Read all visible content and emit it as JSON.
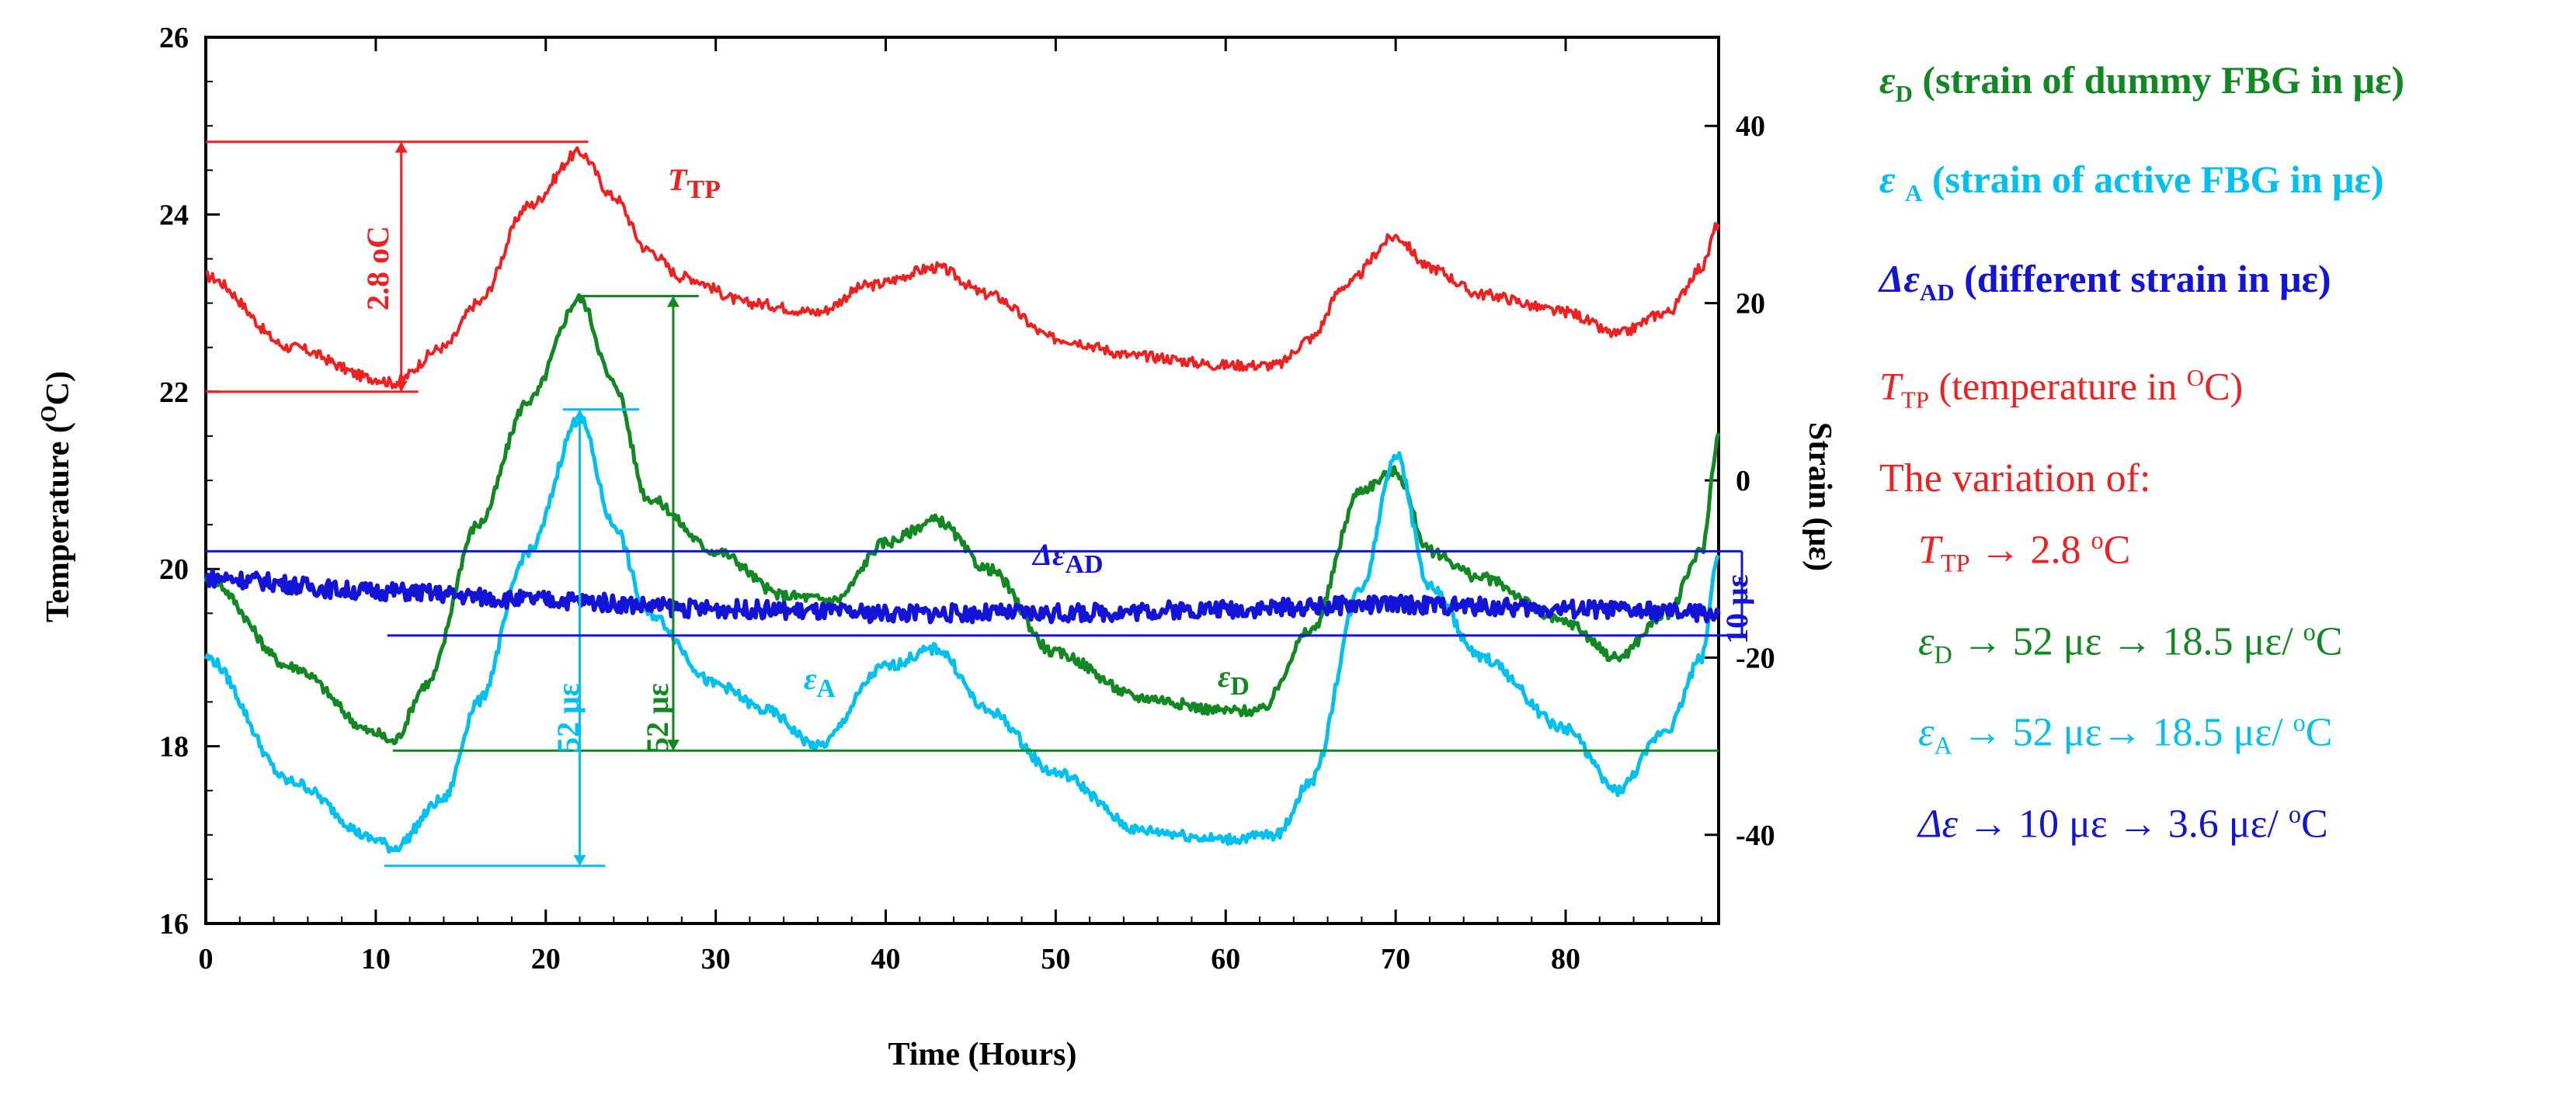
{
  "chart_data": {
    "type": "line",
    "xlabel": "Time (Hours)",
    "ylabel_left": "Temperature (oC)",
    "ylabel_right": "Strain (με)",
    "xlim": [
      0,
      89
    ],
    "ylim_left": [
      16,
      26
    ],
    "ylim_right": [
      -50,
      50
    ],
    "x_ticks": [
      0,
      10,
      20,
      30,
      40,
      50,
      60,
      70,
      80
    ],
    "y_left_ticks": [
      16,
      18,
      20,
      22,
      24,
      26
    ],
    "y_right_ticks": [
      -40,
      -20,
      0,
      20,
      40
    ],
    "series": [
      {
        "name": "T_TP (temperature in oC)",
        "axis": "left",
        "color": "#f02020",
        "label": "T",
        "label_sub": "TP",
        "x": [
          0,
          5,
          10,
          11,
          14,
          16,
          19,
          22,
          24,
          26,
          28,
          32,
          36,
          39,
          43,
          46,
          50,
          55,
          60,
          63,
          65,
          67,
          70,
          72,
          75,
          80,
          83,
          86,
          88,
          89
        ],
        "y": [
          23.3,
          22.5,
          22.15,
          22.1,
          22.5,
          23.0,
          24.1,
          24.7,
          24.2,
          23.6,
          23.3,
          23.0,
          22.9,
          23.2,
          23.4,
          23.1,
          22.6,
          22.4,
          22.3,
          22.3,
          22.6,
          23.2,
          23.75,
          23.4,
          23.1,
          22.9,
          22.65,
          22.9,
          23.4,
          23.9
        ]
      },
      {
        "name": "εD (strain of dummy FBG in με)",
        "axis": "left",
        "color": "#118822",
        "label": "ε",
        "label_sub": "D",
        "x": [
          0,
          5,
          10,
          11,
          13,
          16,
          19,
          22,
          24,
          26,
          30,
          34,
          37,
          40,
          43,
          46,
          50,
          55,
          60,
          62,
          65,
          68,
          70,
          72,
          75,
          80,
          83,
          86,
          88,
          89
        ],
        "y": [
          19.9,
          18.9,
          18.15,
          18.05,
          18.7,
          20.5,
          21.9,
          23.05,
          22.1,
          20.8,
          20.2,
          19.7,
          19.65,
          20.3,
          20.55,
          20.0,
          19.05,
          18.55,
          18.4,
          18.4,
          19.3,
          20.9,
          21.1,
          20.2,
          19.9,
          19.4,
          19.0,
          19.5,
          20.2,
          21.5
        ]
      },
      {
        "name": "εA (strain of active FBG in με)",
        "axis": "left",
        "color": "#00c0f0",
        "label": "ε",
        "label_sub": "A",
        "x": [
          0,
          5,
          10,
          11,
          14,
          16,
          19,
          22,
          24,
          26,
          30,
          33,
          36,
          40,
          43,
          46,
          50,
          55,
          60,
          63,
          65,
          68,
          70,
          72,
          75,
          80,
          83,
          86,
          88,
          89
        ],
        "y": [
          19.0,
          17.6,
          16.95,
          16.85,
          17.4,
          18.5,
          20.2,
          21.7,
          20.5,
          19.5,
          18.7,
          18.4,
          18.0,
          18.9,
          19.1,
          18.4,
          17.7,
          17.05,
          16.95,
          17.0,
          17.6,
          19.8,
          21.3,
          19.8,
          19.0,
          18.2,
          17.5,
          18.2,
          19.0,
          20.2
        ]
      },
      {
        "name": "ΔεAD (different strain in με)",
        "axis": "left",
        "color": "#1414d8",
        "label": "Δε",
        "label_sub": "AD",
        "x": [
          0,
          10,
          20,
          30,
          40,
          50,
          60,
          70,
          80,
          89
        ],
        "y": [
          19.9,
          19.75,
          19.65,
          19.55,
          19.5,
          19.5,
          19.55,
          19.6,
          19.55,
          19.5
        ]
      }
    ],
    "annotations": [
      {
        "text": "2.8 oC",
        "color": "#f02020"
      },
      {
        "text": "52 με",
        "color": "#118822"
      },
      {
        "text": "52 με",
        "color": "#00c0f0"
      },
      {
        "text": "10 με",
        "color": "#1414d8"
      }
    ]
  },
  "plot_labels": {
    "ttp": "T",
    "ttp_sub": "TP",
    "ed": "ε",
    "ed_sub": "D",
    "ea": "ε",
    "ea_sub": "A",
    "dead": "Δε",
    "dead_sub": "AD",
    "temp_span": "2.8 oC",
    "green_span": "52 με",
    "cyan_span": "52 με",
    "blue_span": "10 με"
  },
  "legend": {
    "items": [
      {
        "sym": "ε",
        "sub": "D",
        "text": " (strain of dummy FBG in με)",
        "color": "#118822"
      },
      {
        "sym": "ε ",
        "sub": "A",
        "text": " (strain of active FBG in με)",
        "color": "#00c0f0"
      },
      {
        "sym": "Δε",
        "sub": "AD",
        "text": " (different strain in με)",
        "color": "#1414d8"
      },
      {
        "sym": "T",
        "sub": "TP",
        "text": " (temperature in ",
        "sup": "O",
        "tail": "C)",
        "color": "#f02020"
      }
    ],
    "variation_title": "The variation of:",
    "variation": [
      {
        "sym": "T",
        "sub": "TP",
        "text": " → 2.8 ",
        "sup": "o",
        "tail": "C",
        "color": "#f02020"
      },
      {
        "sym": "ε",
        "sub": "D",
        "text": "  → 52 με → 18.5 με/ ",
        "sup": "o",
        "tail": "C",
        "color": "#118822"
      },
      {
        "sym": "ε",
        "sub": "A",
        "text": " → 52 με→ 18.5 με/ ",
        "sup": "o",
        "tail": "C",
        "color": "#00c0f0"
      },
      {
        "sym": "Δε",
        "sub": "",
        "text": " → 10 με → 3.6 με/ ",
        "sup": "o",
        "tail": "C",
        "color": "#1414d8"
      }
    ]
  }
}
